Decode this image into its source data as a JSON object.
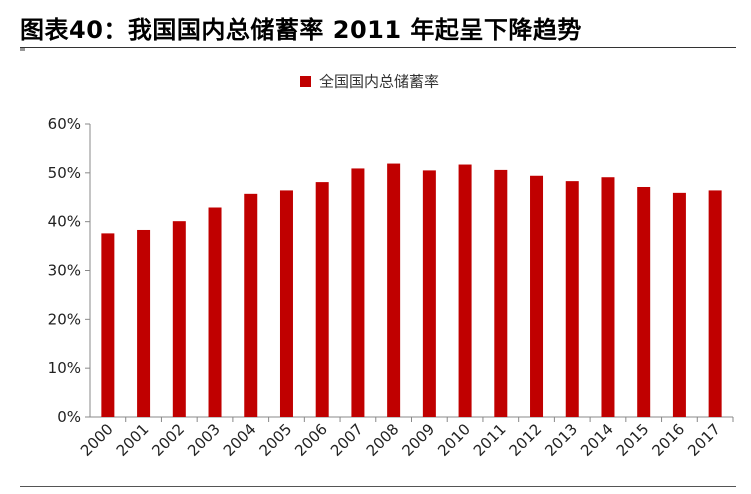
{
  "header": {
    "title": "图表40：我国国内总储蓄率 2011 年起呈下降趋势"
  },
  "chart_data": {
    "type": "bar",
    "categories": [
      "2000",
      "2001",
      "2002",
      "2003",
      "2004",
      "2005",
      "2006",
      "2007",
      "2008",
      "2009",
      "2010",
      "2011",
      "2012",
      "2013",
      "2014",
      "2015",
      "2016",
      "2017"
    ],
    "series": [
      {
        "name": "全国国内总储蓄率",
        "color": "#c00000",
        "values": [
          37.6,
          38.3,
          40.1,
          42.9,
          45.7,
          46.4,
          48.1,
          50.9,
          51.9,
          50.5,
          51.7,
          50.6,
          49.4,
          48.3,
          49.1,
          47.1,
          45.9,
          46.4
        ]
      }
    ],
    "ylim": [
      0,
      60
    ],
    "yticks": [
      0,
      10,
      20,
      30,
      40,
      50,
      60
    ],
    "ytick_labels": [
      "0%",
      "10%",
      "20%",
      "30%",
      "40%",
      "50%",
      "60%"
    ],
    "legend": {
      "placement": "top-center",
      "label": "全国国内总储蓄率"
    },
    "grid": false,
    "xlabel": "",
    "ylabel": ""
  }
}
